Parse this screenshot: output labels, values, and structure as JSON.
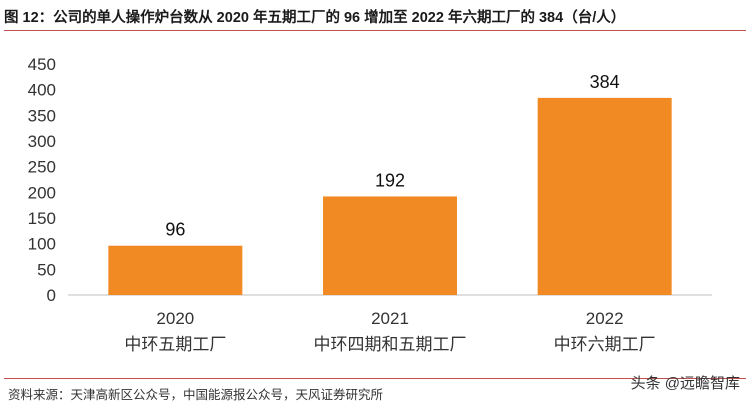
{
  "title": "图 12：公司的单人操作炉台数从 2020 年五期工厂的 96 增加至 2022 年六期工厂的 384（台/人）",
  "source": "资料来源：天津高新区公众号，中国能源报公众号，天风证券研究所",
  "watermark": "头条 @远瞻智库",
  "colors": {
    "bar": "#f18a23",
    "axis": "#bfbfbf",
    "rule": "#c0504d"
  },
  "chart_data": {
    "type": "bar",
    "categories": [
      {
        "year": "2020",
        "name": "中环五期工厂"
      },
      {
        "year": "2021",
        "name": "中环四期和五期工厂"
      },
      {
        "year": "2022",
        "name": "中环六期工厂"
      }
    ],
    "values": [
      96,
      192,
      384
    ],
    "data_labels": [
      "96",
      "192",
      "384"
    ],
    "yticks": [
      "0",
      "50",
      "100",
      "150",
      "200",
      "250",
      "300",
      "350",
      "400",
      "450"
    ],
    "ylim": [
      0,
      450
    ],
    "grid": false,
    "legend": "none"
  }
}
